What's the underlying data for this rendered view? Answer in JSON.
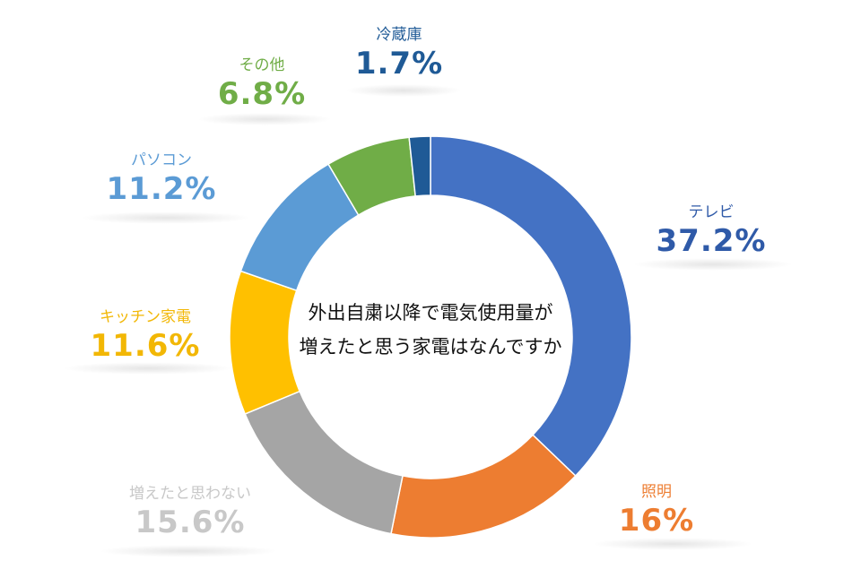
{
  "chart_data": {
    "type": "pie",
    "title": "外出自粛以降で電気使用量が 増えたと思う家電はなんですか",
    "slices": [
      {
        "label": "テレビ",
        "value": 37.2,
        "display": "37.2%",
        "color": "#4472C4"
      },
      {
        "label": "照明",
        "value": 16,
        "display": "16%",
        "color": "#ED7D31"
      },
      {
        "label": "増えたと思わない",
        "value": 15.6,
        "display": "15.6%",
        "color": "#A5A5A5"
      },
      {
        "label": "キッチン家電",
        "value": 11.6,
        "display": "11.6%",
        "color": "#FFC000"
      },
      {
        "label": "パソコン",
        "value": 11.2,
        "display": "11.2%",
        "color": "#5B9BD5"
      },
      {
        "label": "その他",
        "value": 6.8,
        "display": "6.8%",
        "color": "#70AD47"
      },
      {
        "label": "冷蔵庫",
        "value": 1.7,
        "display": "1.7%",
        "color": "#1F5A96"
      }
    ],
    "style": "donut",
    "start_angle": "top, clockwise"
  },
  "center": {
    "line1": "外出自粛以降で電気使用量が",
    "line2": "増えたと思う家電はなんですか"
  }
}
